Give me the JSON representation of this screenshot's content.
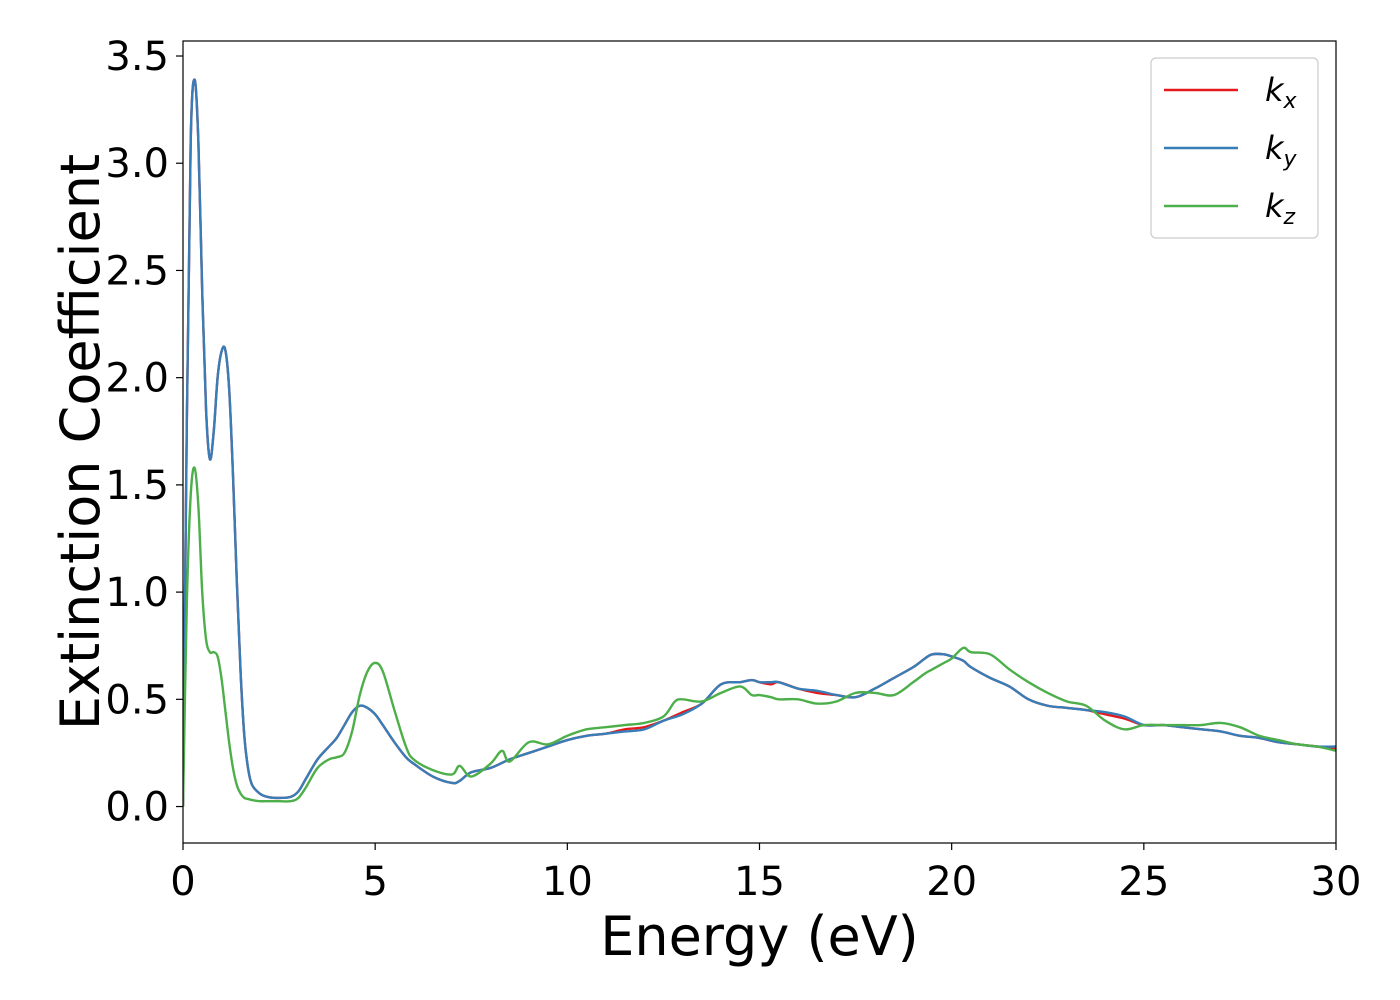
{
  "chart_data": {
    "type": "line",
    "title": "",
    "xlabel": "Energy (eV)",
    "ylabel": "Extinction Coefficient",
    "xlim": [
      0,
      30
    ],
    "ylim": [
      -0.17,
      3.57
    ],
    "xticks": [
      0,
      5,
      10,
      15,
      20,
      25,
      30
    ],
    "xtick_labels": [
      "0",
      "5",
      "10",
      "15",
      "20",
      "25",
      "30"
    ],
    "yticks": [
      0.0,
      0.5,
      1.0,
      1.5,
      2.0,
      2.5,
      3.0,
      3.5
    ],
    "ytick_labels": [
      "0.0",
      "0.5",
      "1.0",
      "1.5",
      "2.0",
      "2.5",
      "3.0",
      "3.5"
    ],
    "grid": false,
    "legend_position": "top-right",
    "series": [
      {
        "name": "k_x",
        "legend_base": "k",
        "legend_sub": "x",
        "color": "#e41a1c",
        "x": [
          0,
          0.1,
          0.2,
          0.3,
          0.4,
          0.5,
          0.6,
          0.7,
          0.8,
          0.9,
          1.0,
          1.1,
          1.2,
          1.3,
          1.4,
          1.5,
          1.6,
          1.7,
          1.8,
          2.0,
          2.2,
          2.5,
          2.8,
          3.0,
          3.2,
          3.5,
          3.8,
          4.0,
          4.2,
          4.4,
          4.6,
          4.8,
          5.0,
          5.2,
          5.5,
          5.8,
          6.0,
          6.5,
          7.0,
          7.2,
          7.5,
          8.0,
          8.5,
          9.0,
          9.5,
          10.0,
          10.5,
          11.0,
          11.5,
          12.0,
          12.5,
          13.0,
          13.5,
          14.0,
          14.5,
          14.8,
          15.0,
          15.3,
          15.5,
          16.0,
          16.5,
          17.0,
          17.5,
          18.0,
          18.5,
          19.0,
          19.3,
          19.5,
          19.8,
          20.0,
          20.3,
          20.5,
          21.0,
          21.5,
          22.0,
          22.5,
          23.0,
          23.5,
          24.0,
          24.5,
          25.0,
          25.5,
          26.0,
          26.5,
          27.0,
          27.5,
          28.0,
          28.5,
          29.0,
          29.5,
          30.0
        ],
        "y": [
          0.0,
          1.8,
          3.1,
          3.39,
          3.1,
          2.4,
          1.85,
          1.62,
          1.75,
          2.0,
          2.12,
          2.13,
          1.95,
          1.55,
          1.05,
          0.62,
          0.32,
          0.17,
          0.1,
          0.06,
          0.045,
          0.04,
          0.045,
          0.07,
          0.13,
          0.22,
          0.28,
          0.32,
          0.38,
          0.44,
          0.47,
          0.46,
          0.43,
          0.38,
          0.3,
          0.23,
          0.2,
          0.14,
          0.11,
          0.12,
          0.16,
          0.18,
          0.22,
          0.25,
          0.28,
          0.31,
          0.33,
          0.34,
          0.36,
          0.37,
          0.4,
          0.44,
          0.48,
          0.57,
          0.58,
          0.59,
          0.58,
          0.57,
          0.58,
          0.55,
          0.53,
          0.52,
          0.51,
          0.55,
          0.6,
          0.65,
          0.69,
          0.71,
          0.71,
          0.7,
          0.68,
          0.65,
          0.6,
          0.56,
          0.5,
          0.47,
          0.46,
          0.45,
          0.43,
          0.41,
          0.38,
          0.38,
          0.37,
          0.36,
          0.35,
          0.33,
          0.32,
          0.3,
          0.29,
          0.28,
          0.27
        ]
      },
      {
        "name": "k_y",
        "legend_base": "k",
        "legend_sub": "y",
        "color": "#377eb8",
        "x": [
          0,
          0.1,
          0.2,
          0.3,
          0.4,
          0.5,
          0.6,
          0.7,
          0.8,
          0.9,
          1.0,
          1.1,
          1.2,
          1.3,
          1.4,
          1.5,
          1.6,
          1.7,
          1.8,
          2.0,
          2.2,
          2.5,
          2.8,
          3.0,
          3.2,
          3.5,
          3.8,
          4.0,
          4.2,
          4.4,
          4.6,
          4.8,
          5.0,
          5.2,
          5.5,
          5.8,
          6.0,
          6.5,
          7.0,
          7.2,
          7.5,
          8.0,
          8.5,
          9.0,
          9.5,
          10.0,
          10.5,
          11.0,
          11.5,
          12.0,
          12.5,
          13.0,
          13.5,
          14.0,
          14.5,
          14.8,
          15.0,
          15.3,
          15.5,
          16.0,
          16.5,
          17.0,
          17.5,
          18.0,
          18.5,
          19.0,
          19.3,
          19.5,
          19.8,
          20.0,
          20.3,
          20.5,
          21.0,
          21.5,
          22.0,
          22.5,
          23.0,
          23.5,
          24.0,
          24.5,
          25.0,
          25.5,
          26.0,
          26.5,
          27.0,
          27.5,
          28.0,
          28.5,
          29.0,
          29.5,
          30.0
        ],
        "y": [
          0.0,
          1.8,
          3.1,
          3.39,
          3.1,
          2.4,
          1.85,
          1.62,
          1.75,
          2.0,
          2.12,
          2.13,
          1.95,
          1.55,
          1.05,
          0.62,
          0.32,
          0.17,
          0.1,
          0.06,
          0.045,
          0.04,
          0.045,
          0.07,
          0.13,
          0.22,
          0.28,
          0.32,
          0.38,
          0.44,
          0.47,
          0.46,
          0.43,
          0.38,
          0.3,
          0.23,
          0.2,
          0.14,
          0.11,
          0.12,
          0.16,
          0.18,
          0.22,
          0.25,
          0.28,
          0.31,
          0.33,
          0.34,
          0.35,
          0.36,
          0.4,
          0.43,
          0.48,
          0.57,
          0.58,
          0.59,
          0.58,
          0.58,
          0.58,
          0.55,
          0.54,
          0.52,
          0.51,
          0.55,
          0.6,
          0.65,
          0.69,
          0.71,
          0.71,
          0.7,
          0.68,
          0.65,
          0.6,
          0.56,
          0.5,
          0.47,
          0.46,
          0.45,
          0.44,
          0.42,
          0.38,
          0.38,
          0.37,
          0.36,
          0.35,
          0.33,
          0.32,
          0.3,
          0.29,
          0.28,
          0.28
        ]
      },
      {
        "name": "k_z",
        "legend_base": "k",
        "legend_sub": "z",
        "color": "#4daf4a",
        "x": [
          0,
          0.1,
          0.2,
          0.3,
          0.4,
          0.5,
          0.6,
          0.7,
          0.8,
          0.9,
          1.0,
          1.1,
          1.2,
          1.3,
          1.4,
          1.5,
          1.6,
          1.7,
          1.8,
          2.0,
          2.2,
          2.5,
          2.8,
          3.0,
          3.2,
          3.5,
          3.8,
          4.0,
          4.2,
          4.4,
          4.6,
          4.8,
          5.0,
          5.2,
          5.5,
          5.8,
          6.0,
          6.5,
          7.0,
          7.2,
          7.5,
          8.0,
          8.3,
          8.5,
          9.0,
          9.5,
          10.0,
          10.5,
          11.0,
          11.5,
          12.0,
          12.5,
          12.8,
          13.0,
          13.5,
          14.0,
          14.5,
          14.8,
          15.0,
          15.3,
          15.5,
          16.0,
          16.5,
          17.0,
          17.5,
          18.0,
          18.5,
          19.0,
          19.3,
          19.5,
          19.8,
          20.0,
          20.3,
          20.5,
          21.0,
          21.5,
          22.0,
          22.5,
          23.0,
          23.5,
          24.0,
          24.5,
          25.0,
          25.5,
          26.0,
          26.5,
          27.0,
          27.5,
          28.0,
          28.5,
          29.0,
          29.5,
          30.0
        ],
        "y": [
          0.0,
          0.95,
          1.45,
          1.58,
          1.4,
          1.0,
          0.78,
          0.72,
          0.72,
          0.7,
          0.6,
          0.45,
          0.3,
          0.18,
          0.1,
          0.06,
          0.04,
          0.035,
          0.03,
          0.025,
          0.025,
          0.025,
          0.025,
          0.04,
          0.09,
          0.18,
          0.22,
          0.23,
          0.25,
          0.35,
          0.52,
          0.63,
          0.67,
          0.63,
          0.45,
          0.28,
          0.22,
          0.17,
          0.15,
          0.19,
          0.14,
          0.2,
          0.26,
          0.21,
          0.3,
          0.29,
          0.33,
          0.36,
          0.37,
          0.38,
          0.39,
          0.42,
          0.49,
          0.5,
          0.49,
          0.53,
          0.56,
          0.52,
          0.52,
          0.51,
          0.5,
          0.5,
          0.48,
          0.49,
          0.53,
          0.53,
          0.52,
          0.58,
          0.62,
          0.64,
          0.67,
          0.69,
          0.74,
          0.72,
          0.71,
          0.64,
          0.58,
          0.53,
          0.49,
          0.47,
          0.4,
          0.36,
          0.38,
          0.38,
          0.38,
          0.38,
          0.39,
          0.37,
          0.33,
          0.31,
          0.29,
          0.28,
          0.26
        ]
      }
    ]
  }
}
